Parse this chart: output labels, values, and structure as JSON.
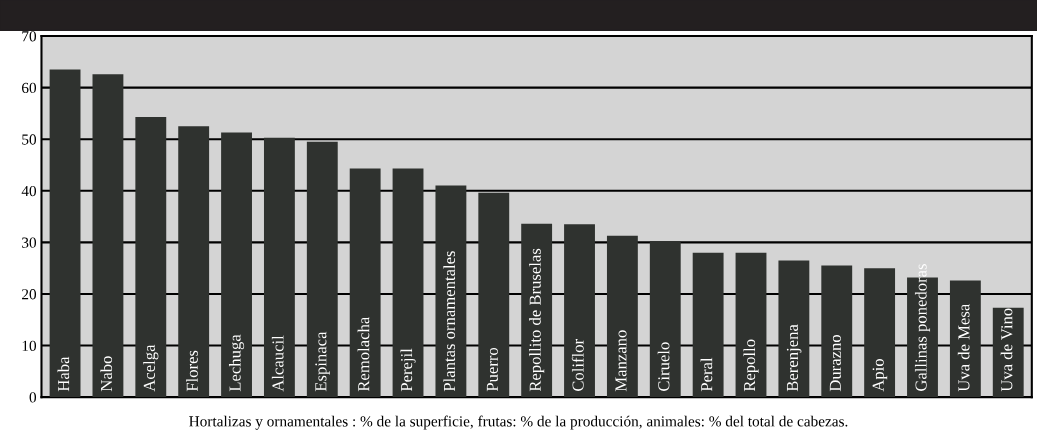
{
  "chart_data": {
    "type": "bar",
    "categories": [
      "Haba",
      "Nabo",
      "Acelga",
      "Flores",
      "Lechuga",
      "Alcaucil",
      "Espinaca",
      "Remolacha",
      "Perejil",
      "Plantas ornamentales",
      "Puerro",
      "Repollito de Bruselas",
      "Coliflor",
      "Manzano",
      "Ciruelo",
      "Peral",
      "Repollo",
      "Berenjena",
      "Durazno",
      "Apio",
      "Gallinas ponedoras",
      "Uva de Mesa",
      "Uva de Vino"
    ],
    "values": [
      63.5,
      62.6,
      54.3,
      52.5,
      51.3,
      50.3,
      49.5,
      44.3,
      44.3,
      41,
      39.6,
      33.6,
      33.5,
      31.3,
      30.2,
      28,
      28,
      26.5,
      25.5,
      25,
      23.2,
      22.6,
      17.3
    ],
    "color": "#2f322f",
    "ylim": [
      0,
      70
    ],
    "yticks": [
      0,
      10,
      20,
      30,
      40,
      50,
      60,
      70
    ],
    "grid": "y",
    "annotations": [
      "Hortalizas y ornamentales : % de la superficie, frutas: % de la producción, animales: % del total de cabezas."
    ]
  }
}
